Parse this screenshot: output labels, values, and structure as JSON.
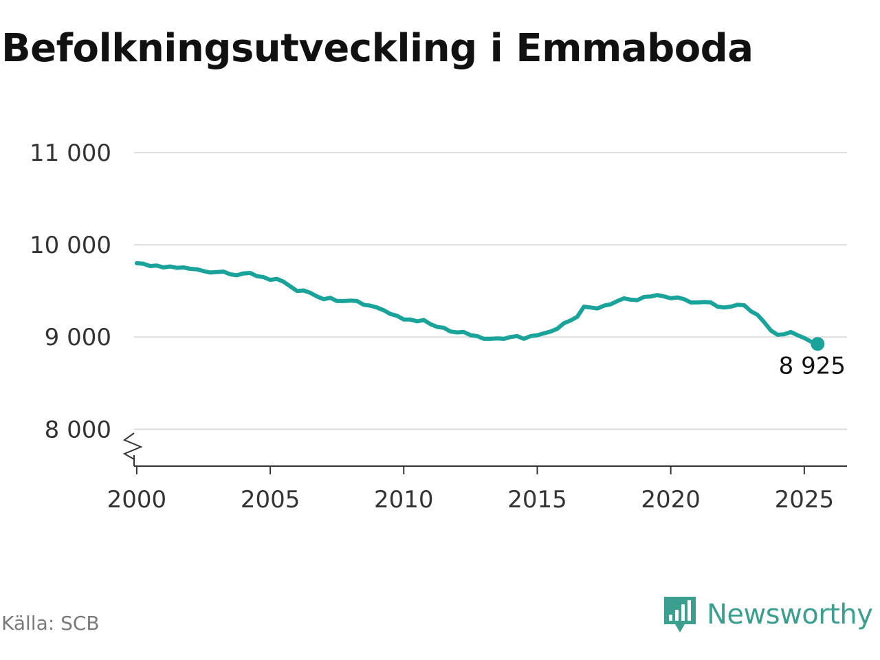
{
  "title": "Befolkningsutveckling i Emmaboda",
  "source": "Källa: SCB",
  "brand": {
    "name": "Newsworthy",
    "icon": "newsworthy-logo-icon",
    "color": "#3a9f8f"
  },
  "chart_data": {
    "type": "line",
    "title": "Befolkningsutveckling i Emmaboda",
    "xlabel": "",
    "ylabel": "",
    "xlim": [
      1999.9,
      2026.6
    ],
    "ylim": [
      7600,
      11000
    ],
    "y_axis_break": true,
    "grid": true,
    "color": "#1aa39a",
    "x_ticks": [
      2000,
      2005,
      2010,
      2015,
      2020,
      2025
    ],
    "x_tick_labels": [
      "2000",
      "2005",
      "2010",
      "2015",
      "2020",
      "2025"
    ],
    "y_ticks": [
      8000,
      9000,
      10000,
      11000
    ],
    "y_tick_labels": [
      "8 000",
      "9 000",
      "10 000",
      "11 000"
    ],
    "end_label": "8 925",
    "series": [
      {
        "x": [
          2000.0,
          2000.25,
          2000.5,
          2000.75,
          2001.0,
          2001.25,
          2001.5,
          2001.75,
          2002.0,
          2002.25,
          2002.5,
          2002.75,
          2003.0,
          2003.25,
          2003.5,
          2003.75,
          2004.0,
          2004.25,
          2004.5,
          2004.75,
          2005.0,
          2005.25,
          2005.5,
          2005.75,
          2006.0,
          2006.25,
          2006.5,
          2006.75,
          2007.0,
          2007.25,
          2007.5,
          2007.75,
          2008.0,
          2008.25,
          2008.5,
          2008.75,
          2009.0,
          2009.25,
          2009.5,
          2009.75,
          2010.0,
          2010.25,
          2010.5,
          2010.75,
          2011.0,
          2011.25,
          2011.5,
          2011.75,
          2012.0,
          2012.25,
          2012.5,
          2012.75,
          2013.0,
          2013.25,
          2013.5,
          2013.75,
          2014.0,
          2014.25,
          2014.5,
          2014.75,
          2015.0,
          2015.25,
          2015.5,
          2015.75,
          2016.0,
          2016.25,
          2016.5,
          2016.75,
          2017.0,
          2017.25,
          2017.5,
          2017.75,
          2018.0,
          2018.25,
          2018.5,
          2018.75,
          2019.0,
          2019.25,
          2019.5,
          2019.75,
          2020.0,
          2020.25,
          2020.5,
          2020.75,
          2021.0,
          2021.25,
          2021.5,
          2021.75,
          2022.0,
          2022.25,
          2022.5,
          2022.75,
          2023.0,
          2023.25,
          2023.5,
          2023.75,
          2024.0,
          2024.25,
          2024.5,
          2024.75,
          2025.0,
          2025.25,
          2025.5
        ],
        "y": [
          9800,
          9795,
          9770,
          9775,
          9755,
          9765,
          9750,
          9755,
          9740,
          9735,
          9715,
          9700,
          9705,
          9710,
          9680,
          9670,
          9690,
          9695,
          9660,
          9650,
          9620,
          9630,
          9600,
          9550,
          9500,
          9505,
          9480,
          9440,
          9410,
          9425,
          9390,
          9390,
          9395,
          9390,
          9350,
          9340,
          9320,
          9290,
          9250,
          9230,
          9190,
          9190,
          9170,
          9185,
          9140,
          9110,
          9100,
          9060,
          9050,
          9055,
          9020,
          9010,
          8980,
          8980,
          8985,
          8980,
          9000,
          9010,
          8980,
          9010,
          9020,
          9040,
          9060,
          9090,
          9150,
          9180,
          9220,
          9330,
          9320,
          9310,
          9340,
          9355,
          9390,
          9420,
          9405,
          9400,
          9435,
          9440,
          9455,
          9440,
          9420,
          9430,
          9410,
          9375,
          9375,
          9380,
          9375,
          9330,
          9320,
          9330,
          9350,
          9345,
          9280,
          9240,
          9160,
          9070,
          9025,
          9030,
          9055,
          9020,
          8990,
          8950,
          8925
        ]
      }
    ]
  }
}
